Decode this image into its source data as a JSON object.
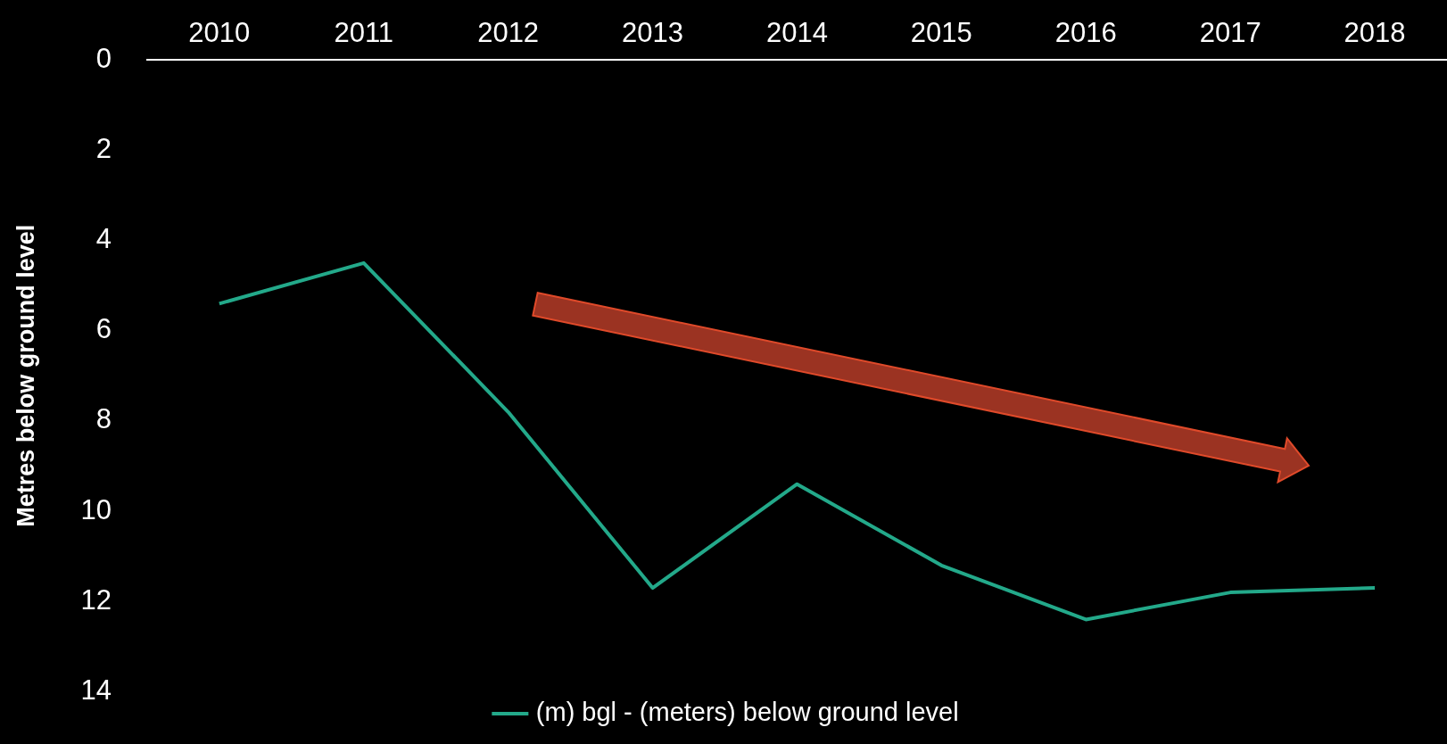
{
  "chart_data": {
    "type": "line",
    "ylabel": "Metres below ground level",
    "categories": [
      "2010",
      "2011",
      "2012",
      "2013",
      "2014",
      "2015",
      "2016",
      "2017",
      "2018"
    ],
    "series": [
      {
        "name": "(m) bgl - (meters) below ground level",
        "color": "#23a98a",
        "values": [
          5.4,
          4.5,
          7.8,
          11.7,
          9.4,
          11.2,
          12.4,
          11.8,
          11.7
        ]
      }
    ],
    "ylim": [
      14,
      0
    ],
    "yticks": [
      0,
      2,
      4,
      6,
      8,
      10,
      12,
      14
    ],
    "grid": false,
    "legend": "bottom",
    "marker": "none"
  }
}
